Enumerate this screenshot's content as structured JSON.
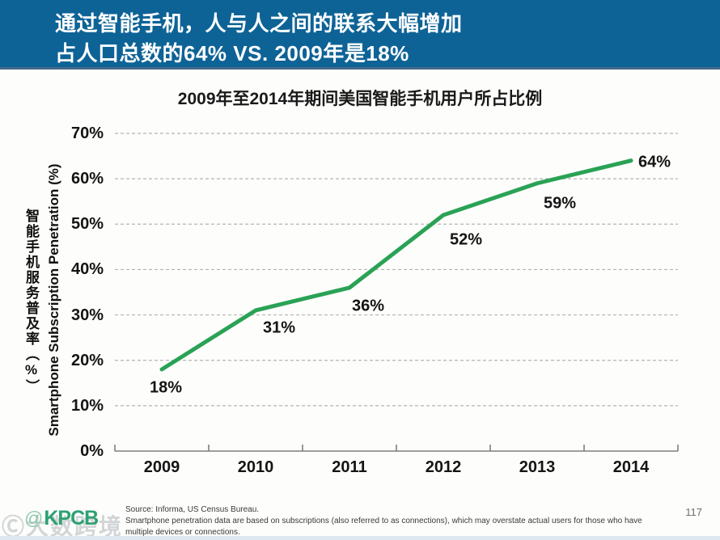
{
  "header": {
    "line1": "通过智能手机，人与人之间的联系大幅增加",
    "line2": "占人口总数的64% VS. 2009年是18%",
    "bg_color": "#0e6396"
  },
  "chart_data": {
    "type": "line",
    "title": "2009年至2014年期间美国智能手机用户所占比例",
    "categories": [
      "2009",
      "2010",
      "2011",
      "2012",
      "2013",
      "2014"
    ],
    "values": [
      18,
      31,
      36,
      52,
      59,
      64
    ],
    "data_labels": [
      "18%",
      "31%",
      "36%",
      "52%",
      "59%",
      "64%"
    ],
    "y_ticks": [
      "0%",
      "10%",
      "20%",
      "30%",
      "40%",
      "50%",
      "60%",
      "70%"
    ],
    "ylim": [
      0,
      70
    ],
    "ylabel_cn": "智能手机服务普及率（%）",
    "ylabel_en": "Smartphone Subscription Penetration (%)",
    "line_color": "#2aa255",
    "grid": "dashed-horizontal",
    "legend": false
  },
  "footer": {
    "logo_swirl": "@",
    "logo_text": "KPCB",
    "source_line1": "Source: Informa, US Census Bureau.",
    "source_line2": "Smartphone penetration data are based on subscriptions (also referred to as connections), which may overstate actual users for those who have multiple devices or connections.",
    "page_number": "117",
    "watermark": "Ⓒ大数跨境"
  }
}
